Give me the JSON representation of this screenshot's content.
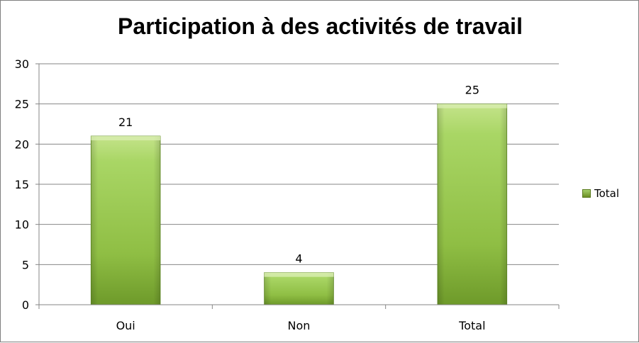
{
  "chart_data": {
    "type": "bar",
    "title": "Participation à des activités de travail",
    "categories": [
      "Oui",
      "Non",
      "Total"
    ],
    "series": [
      {
        "name": "Total",
        "values": [
          21,
          4,
          25
        ]
      }
    ],
    "data_labels": [
      "21",
      "4",
      "25"
    ],
    "ylim": [
      0,
      30
    ],
    "yticks": [
      0,
      5,
      10,
      15,
      20,
      25,
      30
    ],
    "ytick_labels": [
      "0",
      "5",
      "10",
      "15",
      "20",
      "25",
      "30"
    ],
    "grid": true,
    "legend_position": "right",
    "xlabel": "",
    "ylabel": ""
  },
  "colors": {
    "bar_top": "#c4e38a",
    "bar_mid": "#9acd4c",
    "bar_bottom": "#6e9a2a",
    "bar_edge": "#5f8a22",
    "grid": "#868686",
    "axis": "#868686",
    "text": "#000000"
  }
}
